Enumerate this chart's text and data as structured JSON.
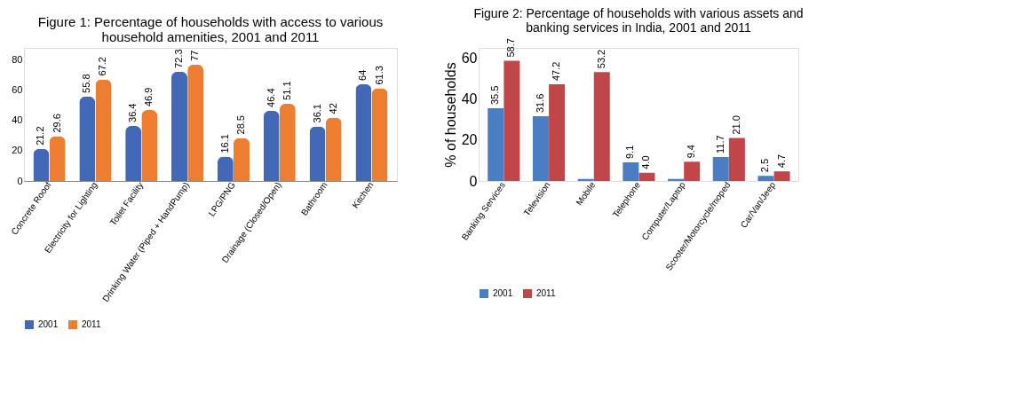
{
  "chart_data": [
    {
      "type": "bar",
      "title": "Figure 1: Percentage of households with access to various household amenities, 2001 and 2011",
      "categories": [
        "Concrete Rooof",
        "Electricity for Lighting",
        "Toilet Facility",
        "Drinking Water (Piped + HandPump)",
        "LPG/PNG",
        "Drainage (Closed/Open)",
        "Bathroom",
        "Kitchen"
      ],
      "series": [
        {
          "name": "2001",
          "color": "#4169b8",
          "values": [
            21.2,
            55.8,
            36.4,
            72.3,
            16.1,
            46.4,
            36.1,
            64
          ]
        },
        {
          "name": "2011",
          "color": "#ed7d31",
          "values": [
            29.6,
            67.2,
            46.9,
            77,
            28.5,
            51.1,
            42,
            61.3
          ]
        }
      ],
      "ylim": [
        0,
        88
      ],
      "yticks": [
        0,
        20,
        40,
        60,
        80
      ],
      "data_labels": true,
      "legend": "bottom"
    },
    {
      "type": "bar",
      "title": "Figure 2:  Percentage of households with various assets and banking services in India, 2001 and 2011",
      "ylabel": "% of households",
      "categories": [
        "Banking Services",
        "Television",
        "Mobile",
        "Telephone",
        "Computer/Laptop",
        "Scooter/Motorcycle/moped",
        "Car/Van/Jeep"
      ],
      "series": [
        {
          "name": "2001",
          "color": "#4a7ec2",
          "values": [
            35.5,
            31.6,
            1,
            9.1,
            1,
            11.7,
            2.5
          ],
          "value_labels": [
            "35.5",
            "31.6",
            null,
            "9.1",
            null,
            "11.7",
            "2.5"
          ]
        },
        {
          "name": "2011",
          "color": "#c0464a",
          "values": [
            58.7,
            47.2,
            53.2,
            4.0,
            9.4,
            21.0,
            4.7
          ],
          "value_labels": [
            "58.7",
            "47.2",
            "53.2",
            "4.0",
            "9.4",
            "21.0",
            "4.7"
          ]
        }
      ],
      "ylim": [
        0,
        65
      ],
      "yticks": [
        0,
        20,
        40,
        60
      ],
      "legend": "bottom"
    }
  ]
}
